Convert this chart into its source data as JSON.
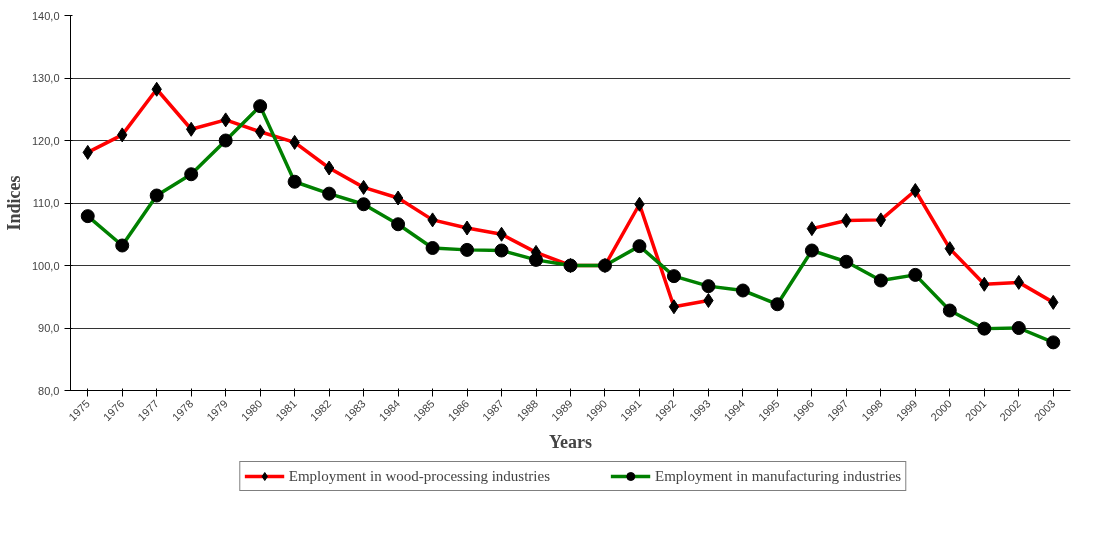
{
  "chart_data": {
    "type": "line",
    "xlabel": "Years",
    "ylabel": "Indices",
    "categories": [
      "1975",
      "1976",
      "1977",
      "1978",
      "1979",
      "1980",
      "1981",
      "1982",
      "1983",
      "1984",
      "1985",
      "1986",
      "1987",
      "1988",
      "1989",
      "1990",
      "1991",
      "1992",
      "1993",
      "1994",
      "1995",
      "1996",
      "1997",
      "1998",
      "1999",
      "2000",
      "2001",
      "2002",
      "2003"
    ],
    "series": [
      {
        "name": "Employment in wood-processing industries",
        "color": "#ff0000",
        "marker": "diamond",
        "values": [
          118.1,
          120.9,
          128.2,
          121.8,
          123.3,
          121.4,
          119.7,
          115.6,
          112.5,
          110.8,
          107.3,
          106.0,
          105.0,
          102.1,
          100.0,
          100.0,
          109.8,
          93.4,
          94.4,
          null,
          null,
          105.9,
          107.2,
          107.3,
          112.0,
          102.7,
          97.0,
          97.3,
          94.1
        ]
      },
      {
        "name": "Employment in manufacturing industries",
        "color": "#008000",
        "marker": "circle",
        "values": [
          107.9,
          103.2,
          111.2,
          114.6,
          120.0,
          125.5,
          113.4,
          111.5,
          109.8,
          106.6,
          102.8,
          102.5,
          102.4,
          100.9,
          100.0,
          100.0,
          103.1,
          98.3,
          96.7,
          96.0,
          93.8,
          102.4,
          100.6,
          97.6,
          98.5,
          92.8,
          89.9,
          90.0,
          87.7
        ]
      }
    ],
    "ylim": [
      80,
      140
    ],
    "yticks": [
      {
        "value": 80,
        "label": "80,0"
      },
      {
        "value": 90,
        "label": "90,0"
      },
      {
        "value": 100,
        "label": "100,0"
      },
      {
        "value": 110,
        "label": "110,0"
      },
      {
        "value": 120,
        "label": "120,0"
      },
      {
        "value": 130,
        "label": "130,0"
      },
      {
        "value": 140,
        "label": "140,0"
      }
    ],
    "grid": "y",
    "legend": "bottom",
    "line_style": "solid"
  }
}
